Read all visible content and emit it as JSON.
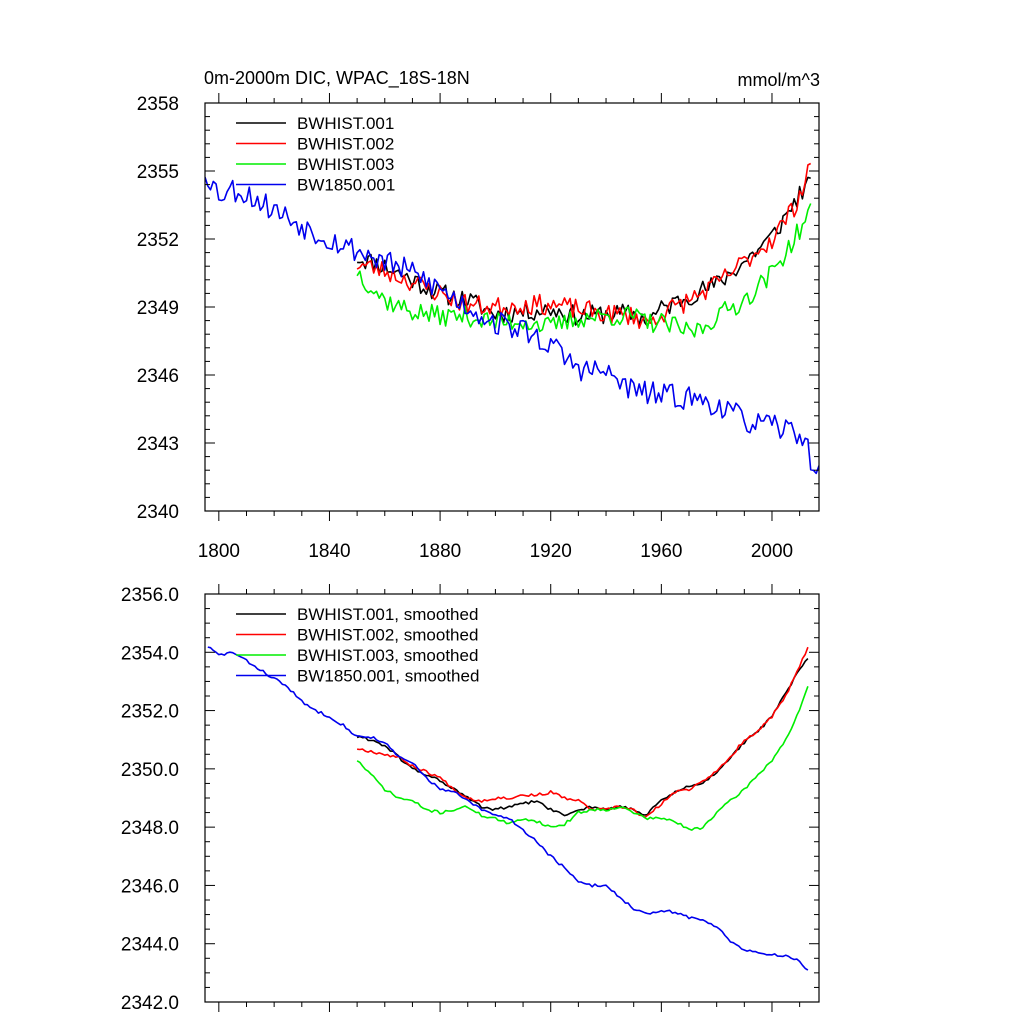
{
  "figure": {
    "title": "0m-2000m DIC, WPAC_18S-18N",
    "units": "mmol/m^3"
  },
  "chart_data": [
    {
      "type": "line",
      "title": "0m-2000m DIC, WPAC_18S-18N",
      "units": "mmol/m^3",
      "xlabel": "",
      "ylabel": "",
      "xlim": [
        1795,
        2017
      ],
      "ylim": [
        2340,
        2358
      ],
      "xticks": [
        1800,
        1840,
        1880,
        1920,
        1960,
        2000
      ],
      "xtick_labels": [
        "1800",
        "1840",
        "1880",
        "1920",
        "1960",
        "2000"
      ],
      "yticks": [
        2340,
        2343,
        2346,
        2349,
        2352,
        2355,
        2358
      ],
      "ytick_labels": [
        "2340",
        "2343",
        "2346",
        "2349",
        "2352",
        "2355",
        "2358"
      ],
      "legend": "top-left",
      "series": [
        {
          "name": "BWHIST.001",
          "color": "#000000",
          "noise": 0.45,
          "seed": 11,
          "knots": [
            [
              1850,
              2351.2
            ],
            [
              1860,
              2350.8
            ],
            [
              1870,
              2350.2
            ],
            [
              1880,
              2349.6
            ],
            [
              1890,
              2349.3
            ],
            [
              1900,
              2348.7
            ],
            [
              1910,
              2348.8
            ],
            [
              1920,
              2348.9
            ],
            [
              1930,
              2348.6
            ],
            [
              1940,
              2348.7
            ],
            [
              1950,
              2348.7
            ],
            [
              1955,
              2348.4
            ],
            [
              1960,
              2348.9
            ],
            [
              1970,
              2349.5
            ],
            [
              1980,
              2350.0
            ],
            [
              1990,
              2351.0
            ],
            [
              2000,
              2352.1
            ],
            [
              2005,
              2353.0
            ],
            [
              2010,
              2354.0
            ],
            [
              2014,
              2354.4
            ]
          ]
        },
        {
          "name": "BWHIST.002",
          "color": "#ff0000",
          "noise": 0.45,
          "seed": 23,
          "knots": [
            [
              1850,
              2350.9
            ],
            [
              1860,
              2350.6
            ],
            [
              1870,
              2350.1
            ],
            [
              1880,
              2349.6
            ],
            [
              1890,
              2349.1
            ],
            [
              1900,
              2349.0
            ],
            [
              1910,
              2349.1
            ],
            [
              1920,
              2349.1
            ],
            [
              1930,
              2348.9
            ],
            [
              1940,
              2348.7
            ],
            [
              1950,
              2348.6
            ],
            [
              1955,
              2348.3
            ],
            [
              1960,
              2348.7
            ],
            [
              1970,
              2349.3
            ],
            [
              1980,
              2350.0
            ],
            [
              1990,
              2351.0
            ],
            [
              2000,
              2352.0
            ],
            [
              2008,
              2353.4
            ],
            [
              2012,
              2354.6
            ],
            [
              2014,
              2355.5
            ]
          ]
        },
        {
          "name": "BWHIST.003",
          "color": "#00ee00",
          "noise": 0.45,
          "seed": 37,
          "knots": [
            [
              1850,
              2350.6
            ],
            [
              1855,
              2349.9
            ],
            [
              1860,
              2349.3
            ],
            [
              1870,
              2348.8
            ],
            [
              1880,
              2348.6
            ],
            [
              1890,
              2348.6
            ],
            [
              1900,
              2348.3
            ],
            [
              1910,
              2348.4
            ],
            [
              1920,
              2348.1
            ],
            [
              1930,
              2348.5
            ],
            [
              1940,
              2348.6
            ],
            [
              1950,
              2348.6
            ],
            [
              1955,
              2348.3
            ],
            [
              1960,
              2348.3
            ],
            [
              1965,
              2348.1
            ],
            [
              1970,
              2347.9
            ],
            [
              1975,
              2348.1
            ],
            [
              1980,
              2348.6
            ],
            [
              1990,
              2349.3
            ],
            [
              2000,
              2350.5
            ],
            [
              2008,
              2352.0
            ],
            [
              2012,
              2352.8
            ],
            [
              2014,
              2353.2
            ]
          ]
        },
        {
          "name": "BW1850.001",
          "color": "#0000ee",
          "noise": 0.55,
          "seed": 53,
          "knots": [
            [
              1795,
              2355.0
            ],
            [
              1800,
              2354.0
            ],
            [
              1805,
              2354.2
            ],
            [
              1810,
              2354.0
            ],
            [
              1820,
              2353.3
            ],
            [
              1830,
              2352.6
            ],
            [
              1840,
              2352.0
            ],
            [
              1850,
              2351.5
            ],
            [
              1860,
              2351.0
            ],
            [
              1870,
              2350.5
            ],
            [
              1880,
              2349.8
            ],
            [
              1890,
              2349.0
            ],
            [
              1900,
              2348.3
            ],
            [
              1910,
              2348.0
            ],
            [
              1920,
              2347.3
            ],
            [
              1930,
              2346.3
            ],
            [
              1940,
              2346.1
            ],
            [
              1950,
              2345.3
            ],
            [
              1960,
              2345.1
            ],
            [
              1970,
              2345.0
            ],
            [
              1980,
              2344.7
            ],
            [
              1990,
              2344.0
            ],
            [
              2000,
              2343.7
            ],
            [
              2010,
              2343.5
            ],
            [
              2017,
              2341.5
            ]
          ]
        }
      ]
    },
    {
      "type": "line",
      "title": "",
      "xlabel": "",
      "ylabel": "",
      "xlim": [
        1795,
        2017
      ],
      "ylim": [
        2342.0,
        2356.0
      ],
      "xticks": [
        1800,
        1840,
        1880,
        1920,
        1960,
        2000
      ],
      "yticks": [
        2342.0,
        2344.0,
        2346.0,
        2348.0,
        2350.0,
        2352.0,
        2354.0,
        2356.0
      ],
      "ytick_labels": [
        "2342.0",
        "2344.0",
        "2346.0",
        "2348.0",
        "2350.0",
        "2352.0",
        "2354.0",
        "2356.0"
      ],
      "legend": "top-left",
      "series": [
        {
          "name": "BWHIST.001, smoothed",
          "color": "#000000",
          "noise": 0.05,
          "seed": 61,
          "knots": [
            [
              1850,
              2351.1
            ],
            [
              1855,
              2351.0
            ],
            [
              1860,
              2350.8
            ],
            [
              1865,
              2350.4
            ],
            [
              1870,
              2350.0
            ],
            [
              1875,
              2349.8
            ],
            [
              1880,
              2349.6
            ],
            [
              1885,
              2349.3
            ],
            [
              1890,
              2349.0
            ],
            [
              1895,
              2348.7
            ],
            [
              1900,
              2348.6
            ],
            [
              1905,
              2348.7
            ],
            [
              1910,
              2348.8
            ],
            [
              1915,
              2348.9
            ],
            [
              1920,
              2348.6
            ],
            [
              1925,
              2348.4
            ],
            [
              1930,
              2348.6
            ],
            [
              1935,
              2348.7
            ],
            [
              1940,
              2348.6
            ],
            [
              1945,
              2348.7
            ],
            [
              1950,
              2348.6
            ],
            [
              1954,
              2348.4
            ],
            [
              1960,
              2348.9
            ],
            [
              1965,
              2349.2
            ],
            [
              1970,
              2349.4
            ],
            [
              1975,
              2349.5
            ],
            [
              1980,
              2349.9
            ],
            [
              1985,
              2350.4
            ],
            [
              1990,
              2350.9
            ],
            [
              1995,
              2351.3
            ],
            [
              2000,
              2351.8
            ],
            [
              2005,
              2352.6
            ],
            [
              2010,
              2353.4
            ],
            [
              2013,
              2353.8
            ]
          ]
        },
        {
          "name": "BWHIST.002, smoothed",
          "color": "#ff0000",
          "noise": 0.05,
          "seed": 67,
          "knots": [
            [
              1850,
              2350.7
            ],
            [
              1855,
              2350.6
            ],
            [
              1860,
              2350.5
            ],
            [
              1865,
              2350.4
            ],
            [
              1870,
              2350.1
            ],
            [
              1875,
              2349.9
            ],
            [
              1880,
              2349.7
            ],
            [
              1885,
              2349.3
            ],
            [
              1890,
              2349.0
            ],
            [
              1895,
              2348.9
            ],
            [
              1900,
              2349.0
            ],
            [
              1905,
              2349.0
            ],
            [
              1910,
              2349.1
            ],
            [
              1915,
              2349.1
            ],
            [
              1920,
              2349.2
            ],
            [
              1925,
              2349.0
            ],
            [
              1930,
              2348.9
            ],
            [
              1935,
              2348.6
            ],
            [
              1940,
              2348.6
            ],
            [
              1945,
              2348.7
            ],
            [
              1950,
              2348.6
            ],
            [
              1954,
              2348.3
            ],
            [
              1960,
              2348.8
            ],
            [
              1965,
              2349.2
            ],
            [
              1970,
              2349.3
            ],
            [
              1975,
              2349.6
            ],
            [
              1980,
              2349.9
            ],
            [
              1985,
              2350.4
            ],
            [
              1990,
              2351.0
            ],
            [
              1995,
              2351.3
            ],
            [
              2000,
              2351.8
            ],
            [
              2005,
              2352.5
            ],
            [
              2010,
              2353.5
            ],
            [
              2013,
              2354.2
            ]
          ]
        },
        {
          "name": "BWHIST.003, smoothed",
          "color": "#00ee00",
          "noise": 0.05,
          "seed": 71,
          "knots": [
            [
              1850,
              2350.3
            ],
            [
              1855,
              2349.8
            ],
            [
              1860,
              2349.3
            ],
            [
              1865,
              2349.0
            ],
            [
              1870,
              2348.9
            ],
            [
              1875,
              2348.6
            ],
            [
              1880,
              2348.5
            ],
            [
              1885,
              2348.6
            ],
            [
              1890,
              2348.7
            ],
            [
              1895,
              2348.4
            ],
            [
              1900,
              2348.3
            ],
            [
              1905,
              2348.1
            ],
            [
              1910,
              2348.3
            ],
            [
              1915,
              2348.2
            ],
            [
              1920,
              2348.0
            ],
            [
              1925,
              2348.1
            ],
            [
              1930,
              2348.5
            ],
            [
              1935,
              2348.6
            ],
            [
              1940,
              2348.6
            ],
            [
              1945,
              2348.7
            ],
            [
              1950,
              2348.5
            ],
            [
              1955,
              2348.3
            ],
            [
              1960,
              2348.3
            ],
            [
              1965,
              2348.2
            ],
            [
              1970,
              2347.9
            ],
            [
              1975,
              2348.0
            ],
            [
              1980,
              2348.5
            ],
            [
              1985,
              2348.9
            ],
            [
              1990,
              2349.3
            ],
            [
              1995,
              2349.8
            ],
            [
              2000,
              2350.3
            ],
            [
              2005,
              2351.0
            ],
            [
              2010,
              2352.0
            ],
            [
              2013,
              2352.8
            ]
          ]
        },
        {
          "name": "BW1850.001, smoothed",
          "color": "#0000ee",
          "noise": 0.05,
          "seed": 83,
          "knots": [
            [
              1796,
              2354.2
            ],
            [
              1800,
              2353.9
            ],
            [
              1805,
              2354.0
            ],
            [
              1810,
              2353.7
            ],
            [
              1815,
              2353.4
            ],
            [
              1820,
              2353.1
            ],
            [
              1825,
              2352.8
            ],
            [
              1830,
              2352.3
            ],
            [
              1835,
              2352.0
            ],
            [
              1840,
              2351.8
            ],
            [
              1845,
              2351.5
            ],
            [
              1850,
              2351.1
            ],
            [
              1855,
              2351.1
            ],
            [
              1860,
              2350.9
            ],
            [
              1865,
              2350.4
            ],
            [
              1870,
              2350.2
            ],
            [
              1875,
              2349.7
            ],
            [
              1880,
              2349.3
            ],
            [
              1885,
              2349.2
            ],
            [
              1890,
              2348.9
            ],
            [
              1895,
              2348.6
            ],
            [
              1900,
              2348.4
            ],
            [
              1905,
              2348.3
            ],
            [
              1910,
              2347.9
            ],
            [
              1915,
              2347.5
            ],
            [
              1920,
              2347.0
            ],
            [
              1925,
              2346.6
            ],
            [
              1930,
              2346.1
            ],
            [
              1935,
              2346.0
            ],
            [
              1940,
              2346.0
            ],
            [
              1945,
              2345.6
            ],
            [
              1950,
              2345.2
            ],
            [
              1955,
              2345.0
            ],
            [
              1960,
              2345.1
            ],
            [
              1965,
              2345.1
            ],
            [
              1970,
              2344.9
            ],
            [
              1975,
              2344.8
            ],
            [
              1980,
              2344.6
            ],
            [
              1985,
              2344.1
            ],
            [
              1990,
              2343.8
            ],
            [
              1995,
              2343.7
            ],
            [
              2000,
              2343.6
            ],
            [
              2005,
              2343.6
            ],
            [
              2010,
              2343.4
            ],
            [
              2013,
              2343.1
            ]
          ]
        }
      ]
    }
  ]
}
